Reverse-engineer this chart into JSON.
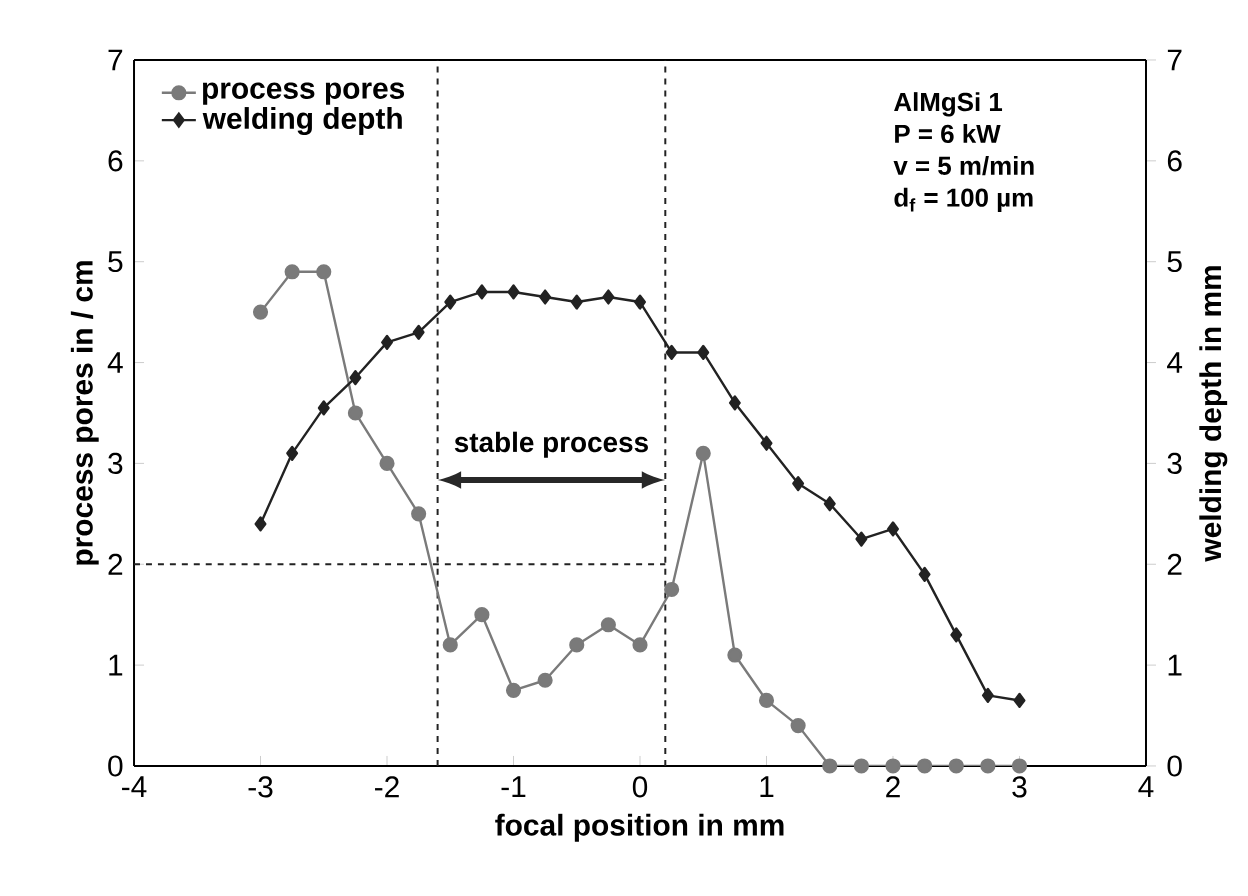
{
  "chart_data": {
    "type": "line",
    "xlabel": "focal position in mm",
    "ylabel": "process pores in / cm",
    "y2label": "welding depth in mm",
    "x": [
      -3,
      -2.75,
      -2.5,
      -2.25,
      -2,
      -1.75,
      -1.5,
      -1.25,
      -1,
      -0.75,
      -0.5,
      -0.25,
      0,
      0.25,
      0.5,
      0.75,
      1,
      1.25,
      1.5,
      1.75,
      2,
      2.25,
      2.5,
      2.75,
      3
    ],
    "series": [
      {
        "name": "process pores",
        "color": "#7a7a7a",
        "marker": "circle",
        "values": [
          4.5,
          4.9,
          4.9,
          3.5,
          3.0,
          2.5,
          1.2,
          1.5,
          0.75,
          0.85,
          1.2,
          1.4,
          1.2,
          1.75,
          3.1,
          1.1,
          0.65,
          0.4,
          0,
          0,
          0,
          0,
          0,
          0,
          0
        ]
      },
      {
        "name": "welding depth",
        "color": "#222222",
        "marker": "diamond",
        "axis": "y2",
        "values": [
          2.4,
          3.1,
          3.55,
          3.85,
          4.2,
          4.3,
          4.6,
          4.7,
          4.7,
          4.65,
          4.6,
          4.65,
          4.6,
          4.1,
          4.1,
          3.6,
          3.2,
          2.8,
          2.6,
          2.25,
          2.35,
          1.9,
          1.3,
          0.7,
          0.65
        ]
      }
    ],
    "xlim": [
      -4,
      4
    ],
    "xticks": [
      -4,
      -3,
      -2,
      -1,
      0,
      1,
      2,
      3,
      4
    ],
    "ylim": [
      0,
      7
    ],
    "yticks": [
      0,
      1,
      2,
      3,
      4,
      5,
      6,
      7
    ],
    "y2lim": [
      0,
      7
    ],
    "y2ticks": [
      0,
      1,
      2,
      3,
      4,
      5,
      6,
      7
    ],
    "ref_lines": [
      {
        "axis": "x",
        "value": -1.6,
        "color": "#222222",
        "line_style": "dashed"
      },
      {
        "axis": "x",
        "value": 0.2,
        "color": "#222222",
        "line_style": "dashed"
      },
      {
        "axis": "y",
        "value": 2,
        "color": "#222222",
        "line_style": "dashed"
      }
    ],
    "annotations": [
      "stable process",
      "AlMgSi 1",
      "P = 6 kW",
      "v = 5 m/min",
      "d$_{f}$ = 100 µm"
    ],
    "legend": "top left",
    "grid": false,
    "line_style": "solid"
  }
}
